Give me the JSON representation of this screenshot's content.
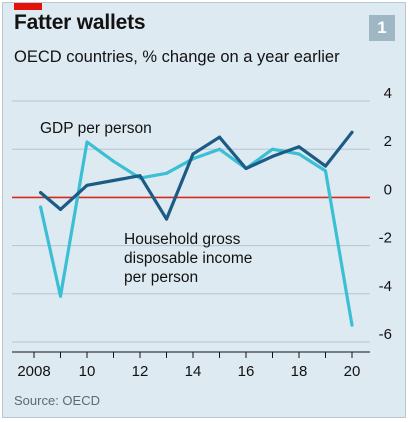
{
  "header": {
    "title": "Fatter wallets",
    "subtitle": "OECD countries, % change on a year earlier",
    "chart_number": "1",
    "accent_color": "#e3120b"
  },
  "footer": {
    "source": "Source: OECD"
  },
  "chart_data": {
    "type": "line",
    "title": "Fatter wallets",
    "subtitle": "OECD countries, % change on a year earlier",
    "xlabel": "",
    "ylabel": "",
    "xlim": [
      2008,
      2020
    ],
    "ylim": [
      -6,
      4
    ],
    "x_ticks": [
      2008,
      2010,
      2012,
      2014,
      2016,
      2018,
      2020
    ],
    "x_tick_labels": [
      "2008",
      "10",
      "12",
      "14",
      "16",
      "18",
      "20"
    ],
    "y_ticks": [
      4,
      2,
      0,
      -2,
      -4,
      -6
    ],
    "y_tick_labels": [
      "4",
      "2",
      "0",
      "-2",
      "-4",
      "-6"
    ],
    "y_axis_side": "right",
    "grid": "horizontal",
    "zero_line_color": "#d7291e",
    "grid_color": "#b3c6d0",
    "series": [
      {
        "name": "GDP per person",
        "color": "#1b5b85",
        "x": [
          2008.25,
          2009,
          2010,
          2011,
          2012,
          2013,
          2014,
          2015,
          2016,
          2017,
          2018,
          2019,
          2020
        ],
        "values": [
          0.2,
          -0.5,
          0.5,
          0.7,
          0.9,
          -0.9,
          1.8,
          2.5,
          1.2,
          1.7,
          2.1,
          1.3,
          2.7
        ]
      },
      {
        "name": "Household gross disposable income per person",
        "color": "#3bbfd4",
        "x": [
          2008.25,
          2009,
          2010,
          2011,
          2012,
          2013,
          2014,
          2015,
          2016,
          2017,
          2018,
          2019,
          2020
        ],
        "values": [
          -0.4,
          -4.1,
          2.3,
          1.5,
          0.8,
          1.0,
          1.6,
          2.0,
          1.2,
          2.0,
          1.8,
          1.1,
          -5.3
        ]
      }
    ],
    "annotations": [
      {
        "series": 0,
        "lines": [
          "GDP per person"
        ]
      },
      {
        "series": 1,
        "lines": [
          "Household gross",
          "disposable income",
          "per person"
        ]
      }
    ]
  }
}
